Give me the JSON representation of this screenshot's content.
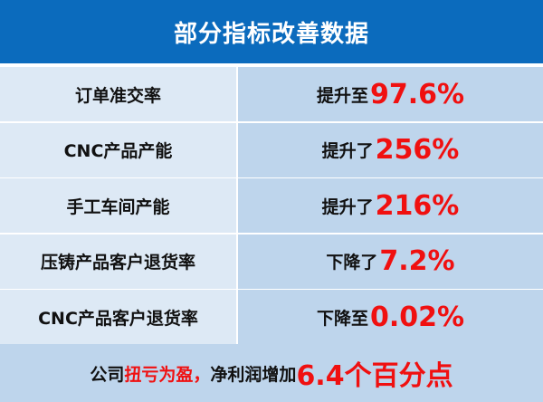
{
  "title": "部分指标改善数据",
  "rows": [
    {
      "label": "订单准交率",
      "change": "提升至",
      "value": "97.6%"
    },
    {
      "label": "CNC产品产能",
      "change": "提升了",
      "value": "256%"
    },
    {
      "label": "手工车间产能",
      "change": "提升了",
      "value": "216%"
    },
    {
      "label": "压铸产品客户退货率",
      "change": "下降了",
      "value": "7.2%"
    },
    {
      "label": "CNC产品客户退货率",
      "change": "下降至",
      "value": "0.02%"
    }
  ],
  "footer": {
    "prefix": "公司",
    "highlight": "扭亏为盈，",
    "middle": "净利润增加",
    "value": "6.4个百分点"
  },
  "colors": {
    "header": "#0b6bbd",
    "left_cell": "#dde9f5",
    "right_cell": "#bed5ec",
    "highlight": "#f01010"
  }
}
